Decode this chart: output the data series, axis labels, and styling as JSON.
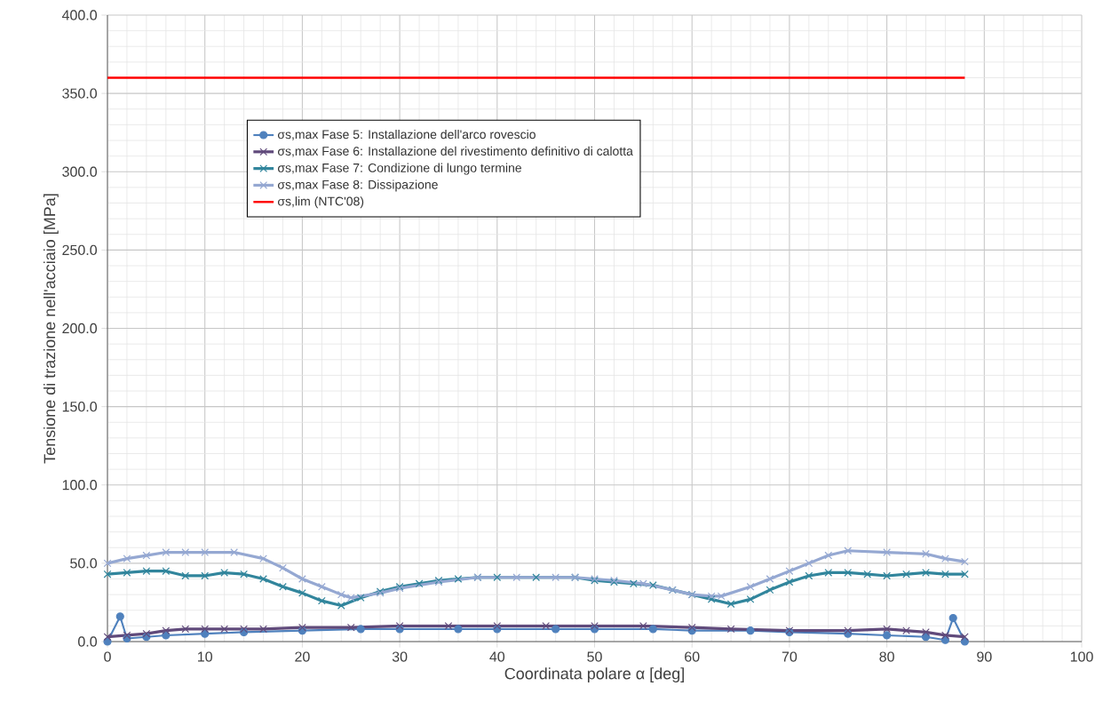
{
  "chart_data": {
    "type": "line",
    "xlabel": "Coordinata polare α [deg]",
    "ylabel": "Tensione di trazione nell'acciaio [MPa]",
    "xlim": [
      0,
      100
    ],
    "xticks": [
      0,
      10,
      20,
      30,
      40,
      50,
      60,
      70,
      80,
      90,
      100
    ],
    "ylim": [
      0,
      400
    ],
    "yticks": [
      {
        "value": 0,
        "label": "0.0"
      },
      {
        "value": 50,
        "label": "50.0"
      },
      {
        "value": 100,
        "label": "100.0"
      },
      {
        "value": 150,
        "label": "150.0"
      },
      {
        "value": 200,
        "label": "200.0"
      },
      {
        "value": 250,
        "label": "250.0"
      },
      {
        "value": 300,
        "label": "300.0"
      },
      {
        "value": 350,
        "label": "350.0"
      },
      {
        "value": 400,
        "label": "400.0"
      }
    ],
    "grid": true,
    "legend": "top left",
    "series": [
      {
        "name": "σs,max Fase 5: Installazione  dell'arco  rovescio",
        "color": "#4f81bd",
        "marker": "circle",
        "x": [
          0,
          1.3,
          2,
          4,
          6,
          10,
          14,
          20,
          26,
          30,
          36,
          40,
          46,
          50,
          56,
          60,
          66,
          70,
          76,
          80,
          84,
          86,
          86.8,
          88
        ],
        "values": [
          0,
          16,
          2,
          3,
          4,
          5,
          6,
          7,
          8,
          8,
          8,
          8,
          8,
          8,
          8,
          7,
          7,
          6,
          5,
          4,
          3,
          1,
          15,
          0
        ]
      },
      {
        "name": "σs,max Fase 6: Installazione  del rivestimento  definitivo  di calotta",
        "color": "#604a7b",
        "marker": "cross",
        "x": [
          0,
          2,
          4,
          6,
          8,
          10,
          12,
          14,
          16,
          20,
          25,
          30,
          35,
          40,
          45,
          50,
          55,
          60,
          64,
          70,
          76,
          80,
          82,
          84,
          86,
          88
        ],
        "values": [
          3,
          4,
          5,
          7,
          8,
          8,
          8,
          8,
          8,
          9,
          9,
          10,
          10,
          10,
          10,
          10,
          10,
          9,
          8,
          7,
          7,
          8,
          7,
          6,
          4,
          3
        ]
      },
      {
        "name": "σs,max Fase 7: Condizione  di lungo termine",
        "color": "#31859c",
        "marker": "cross",
        "x": [
          0,
          2,
          4,
          6,
          8,
          10,
          12,
          14,
          16,
          18,
          20,
          22,
          24,
          26,
          28,
          30,
          32,
          34,
          36,
          38,
          40,
          44,
          48,
          50,
          52,
          54,
          56,
          58,
          60,
          62,
          64,
          66,
          68,
          70,
          72,
          74,
          76,
          78,
          80,
          82,
          84,
          86,
          88
        ],
        "values": [
          43,
          44,
          45,
          45,
          42,
          42,
          44,
          43,
          40,
          35,
          31,
          26,
          23,
          28,
          32,
          35,
          37,
          39,
          40,
          41,
          41,
          41,
          41,
          39,
          38,
          37,
          36,
          33,
          30,
          27,
          24,
          27,
          33,
          38,
          42,
          44,
          44,
          43,
          42,
          43,
          44,
          43,
          43
        ]
      },
      {
        "name": "σs,max Fase 8: Dissipazione",
        "color": "#95a8d2",
        "marker": "cross",
        "x": [
          0,
          2,
          4,
          6,
          8,
          10,
          13,
          16,
          18,
          20,
          22,
          24,
          25,
          28,
          30,
          34,
          38,
          42,
          46,
          48,
          50,
          52,
          55,
          58,
          60,
          62,
          63,
          66,
          68,
          70,
          72,
          74,
          76,
          80,
          84,
          86,
          88
        ],
        "values": [
          50,
          53,
          55,
          57,
          57,
          57,
          57,
          53,
          47,
          40,
          35,
          30,
          28,
          31,
          34,
          38,
          41,
          41,
          41,
          41,
          40,
          39,
          37,
          33,
          30,
          29,
          29,
          35,
          40,
          45,
          50,
          55,
          58,
          57,
          56,
          53,
          51
        ]
      },
      {
        "name": "σs,lim (NTC'08)",
        "color": "#ff0000",
        "marker": "none",
        "x": [
          0,
          88
        ],
        "values": [
          360,
          360
        ]
      }
    ]
  }
}
